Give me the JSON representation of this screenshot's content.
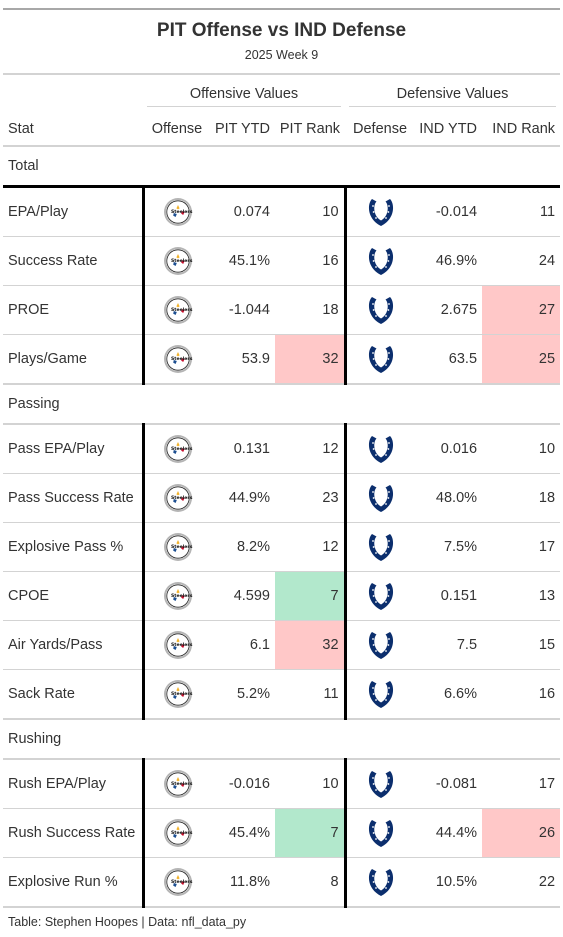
{
  "title": "PIT Offense vs IND Defense",
  "subtitle": "2025 Week 9",
  "spanners": {
    "offense": "Offensive Values",
    "defense": "Defensive Values"
  },
  "columns": {
    "stat": "Stat",
    "offense": "Offense",
    "pit_ytd": "PIT YTD",
    "pit_rank": "PIT Rank",
    "defense": "Defense",
    "ind_ytd": "IND YTD",
    "ind_rank": "IND Rank"
  },
  "colors": {
    "good": "#b2e8cc",
    "bad": "#ffc8c8",
    "colts_blue": "#0b2e6d"
  },
  "icons": {
    "offense_logo": "steelers-logo-icon",
    "defense_logo": "colts-horseshoe-icon"
  },
  "groups": [
    {
      "label": "Total",
      "rows": [
        {
          "stat": "EPA/Play",
          "pit_ytd": "0.074",
          "pit_rank": "10",
          "pit_flag": "",
          "ind_ytd": "-0.014",
          "ind_rank": "11",
          "ind_flag": ""
        },
        {
          "stat": "Success Rate",
          "pit_ytd": "45.1%",
          "pit_rank": "16",
          "pit_flag": "",
          "ind_ytd": "46.9%",
          "ind_rank": "24",
          "ind_flag": ""
        },
        {
          "stat": "PROE",
          "pit_ytd": "-1.044",
          "pit_rank": "18",
          "pit_flag": "",
          "ind_ytd": "2.675",
          "ind_rank": "27",
          "ind_flag": "bad"
        },
        {
          "stat": "Plays/Game",
          "pit_ytd": "53.9",
          "pit_rank": "32",
          "pit_flag": "bad",
          "ind_ytd": "63.5",
          "ind_rank": "25",
          "ind_flag": "bad"
        }
      ]
    },
    {
      "label": "Passing",
      "rows": [
        {
          "stat": "Pass EPA/Play",
          "pit_ytd": "0.131",
          "pit_rank": "12",
          "pit_flag": "",
          "ind_ytd": "0.016",
          "ind_rank": "10",
          "ind_flag": ""
        },
        {
          "stat": "Pass Success Rate",
          "pit_ytd": "44.9%",
          "pit_rank": "23",
          "pit_flag": "",
          "ind_ytd": "48.0%",
          "ind_rank": "18",
          "ind_flag": ""
        },
        {
          "stat": "Explosive Pass %",
          "pit_ytd": "8.2%",
          "pit_rank": "12",
          "pit_flag": "",
          "ind_ytd": "7.5%",
          "ind_rank": "17",
          "ind_flag": ""
        },
        {
          "stat": "CPOE",
          "pit_ytd": "4.599",
          "pit_rank": "7",
          "pit_flag": "good",
          "ind_ytd": "0.151",
          "ind_rank": "13",
          "ind_flag": ""
        },
        {
          "stat": "Air Yards/Pass",
          "pit_ytd": "6.1",
          "pit_rank": "32",
          "pit_flag": "bad",
          "ind_ytd": "7.5",
          "ind_rank": "15",
          "ind_flag": ""
        },
        {
          "stat": "Sack Rate",
          "pit_ytd": "5.2%",
          "pit_rank": "11",
          "pit_flag": "",
          "ind_ytd": "6.6%",
          "ind_rank": "16",
          "ind_flag": ""
        }
      ]
    },
    {
      "label": "Rushing",
      "rows": [
        {
          "stat": "Rush EPA/Play",
          "pit_ytd": "-0.016",
          "pit_rank": "10",
          "pit_flag": "",
          "ind_ytd": "-0.081",
          "ind_rank": "17",
          "ind_flag": ""
        },
        {
          "stat": "Rush Success Rate",
          "pit_ytd": "45.4%",
          "pit_rank": "7",
          "pit_flag": "good",
          "ind_ytd": "44.4%",
          "ind_rank": "26",
          "ind_flag": "bad"
        },
        {
          "stat": "Explosive Run %",
          "pit_ytd": "11.8%",
          "pit_rank": "8",
          "pit_flag": "",
          "ind_ytd": "10.5%",
          "ind_rank": "22",
          "ind_flag": ""
        }
      ]
    }
  ],
  "footer": "Table: Stephen Hoopes | Data: nfl_data_py"
}
